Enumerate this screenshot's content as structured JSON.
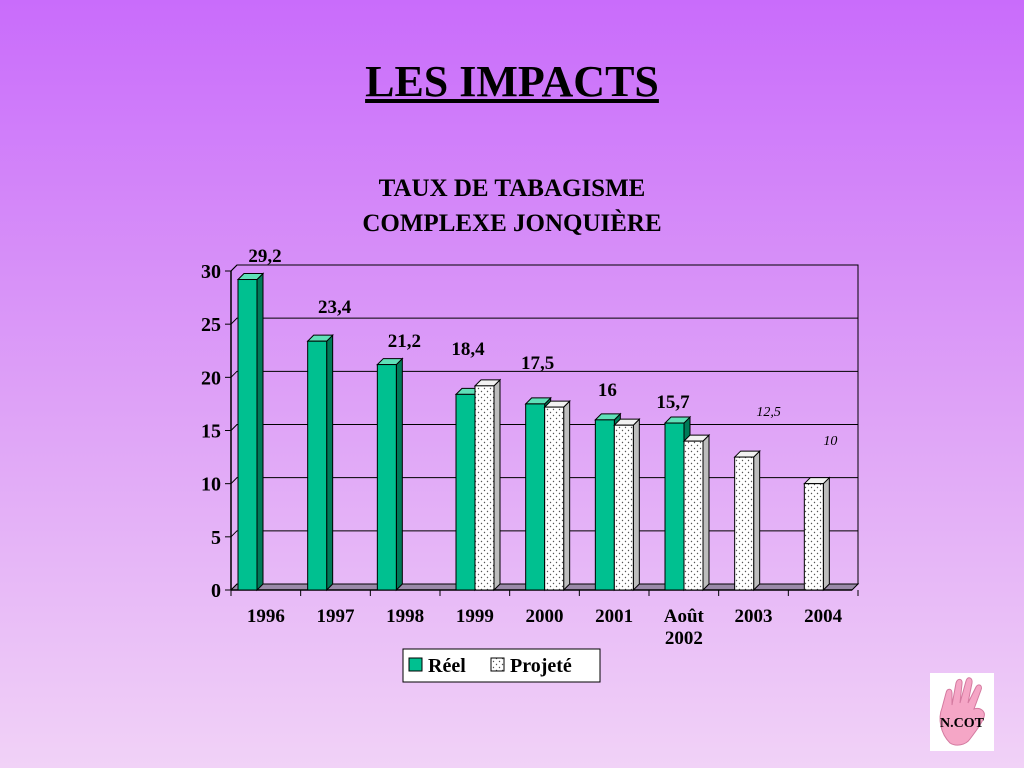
{
  "slide": {
    "title": "LES IMPACTS"
  },
  "logo": {
    "text": "N.COT"
  },
  "chart_data": {
    "type": "bar",
    "title": "TAUX DE TABAGISME",
    "subtitle": "COMPLEXE JONQUIÈRE",
    "categories": [
      "1996",
      "1997",
      "1998",
      "1999",
      "2000",
      "2001",
      "Août\n2002",
      "2003",
      "2004"
    ],
    "series": [
      {
        "name": "Réel",
        "color": "#00c090",
        "values": [
          29.2,
          23.4,
          21.2,
          18.4,
          17.5,
          16,
          15.7,
          null,
          null
        ]
      },
      {
        "name": "Projeté",
        "color": "#ffffff",
        "values": [
          null,
          null,
          null,
          19.2,
          17.2,
          15.5,
          14,
          12.5,
          10
        ]
      }
    ],
    "data_labels": [
      "29,2",
      "23,4",
      "21,2",
      "18,4",
      "17,5",
      "16",
      "15,7",
      "12,5",
      "10"
    ],
    "ylim": [
      0,
      30
    ],
    "yticks": [
      0,
      5,
      10,
      15,
      20,
      25,
      30
    ],
    "grid": true,
    "legend": "bottom"
  }
}
